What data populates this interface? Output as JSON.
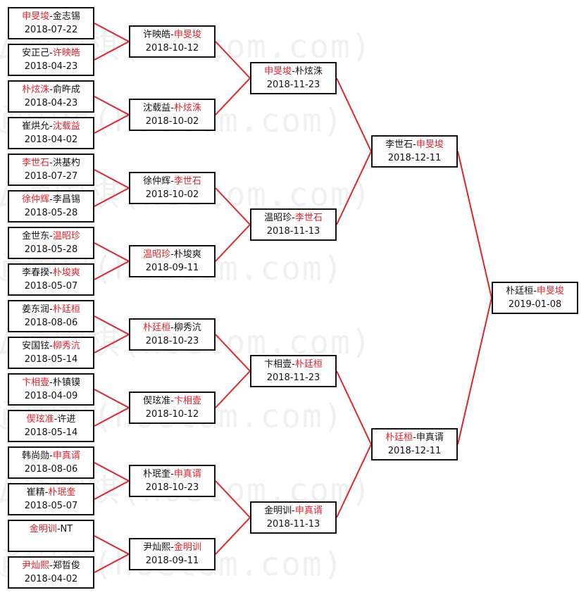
{
  "watermark": "弘通围棋(hoetom.com)",
  "colors": {
    "winner": "#e8202a",
    "line": "#e8202a",
    "border": "#111111"
  },
  "rounds": [
    [
      {
        "p1": "申旻埈",
        "p2": "金志锡",
        "winner": 1,
        "date": "2018-07-22"
      },
      {
        "p1": "安正己",
        "p2": "许映皓",
        "winner": 2,
        "date": "2018-04-23"
      },
      {
        "p1": "朴炫洙",
        "p2": "俞旿成",
        "winner": 1,
        "date": "2018-04-23"
      },
      {
        "p1": "崔烘允",
        "p2": "沈载益",
        "winner": 2,
        "date": "2018-04-02"
      },
      {
        "p1": "李世石",
        "p2": "洪基杓",
        "winner": 1,
        "date": "2018-07-27"
      },
      {
        "p1": "徐仲辉",
        "p2": "李昌锡",
        "winner": 1,
        "date": "2018-05-28"
      },
      {
        "p1": "金世东",
        "p2": "温昭珍",
        "winner": 2,
        "date": "2018-05-28"
      },
      {
        "p1": "李春揆",
        "p2": "朴埈爽",
        "winner": 2,
        "date": "2018-05-07"
      },
      {
        "p1": "姜东润",
        "p2": "朴廷桓",
        "winner": 2,
        "date": "2018-08-06"
      },
      {
        "p1": "安国铉",
        "p2": "柳秀沆",
        "winner": 2,
        "date": "2018-05-14"
      },
      {
        "p1": "卞相壹",
        "p2": "朴镇镆",
        "winner": 1,
        "date": "2018-04-09"
      },
      {
        "p1": "偰玹准",
        "p2": "许进",
        "winner": 1,
        "date": "2018-05-14"
      },
      {
        "p1": "韩尚勋",
        "p2": "申真谞",
        "winner": 2,
        "date": "2018-08-06"
      },
      {
        "p1": "崔精",
        "p2": "朴珉奎",
        "winner": 2,
        "date": "2018-05-07"
      },
      {
        "p1": "金明训",
        "p2": "NT",
        "winner": 1,
        "date": ""
      },
      {
        "p1": "尹灿熙",
        "p2": "郑晢俊",
        "winner": 1,
        "date": "2018-04-02"
      }
    ],
    [
      {
        "p1": "许映皓",
        "p2": "申旻埈",
        "winner": 2,
        "date": "2018-10-12"
      },
      {
        "p1": "沈载益",
        "p2": "朴炫洙",
        "winner": 2,
        "date": "2018-10-02"
      },
      {
        "p1": "徐仲辉",
        "p2": "李世石",
        "winner": 2,
        "date": "2018-10-02"
      },
      {
        "p1": "温昭珍",
        "p2": "朴埈爽",
        "winner": 1,
        "date": "2018-09-11"
      },
      {
        "p1": "朴廷桓",
        "p2": "柳秀沆",
        "winner": 1,
        "date": "2018-10-23"
      },
      {
        "p1": "偰玹准",
        "p2": "卞相壹",
        "winner": 2,
        "date": "2018-10-12"
      },
      {
        "p1": "朴珉奎",
        "p2": "申真谞",
        "winner": 2,
        "date": "2018-10-23"
      },
      {
        "p1": "尹灿熙",
        "p2": "金明训",
        "winner": 2,
        "date": "2018-09-11"
      }
    ],
    [
      {
        "p1": "申旻埈",
        "p2": "朴炫洙",
        "winner": 1,
        "date": "2018-11-23"
      },
      {
        "p1": "温昭珍",
        "p2": "李世石",
        "winner": 2,
        "date": "2018-11-13"
      },
      {
        "p1": "卞相壹",
        "p2": "朴廷桓",
        "winner": 2,
        "date": "2018-11-23"
      },
      {
        "p1": "金明训",
        "p2": "申真谞",
        "winner": 2,
        "date": "2018-11-13"
      }
    ],
    [
      {
        "p1": "李世石",
        "p2": "申旻埈",
        "winner": 2,
        "date": "2018-12-11"
      },
      {
        "p1": "朴廷桓",
        "p2": "申真谞",
        "winner": 1,
        "date": "2018-12-11"
      }
    ],
    [
      {
        "p1": "朴廷桓",
        "p2": "申旻埈",
        "winner": 2,
        "date": "2019-01-08"
      }
    ]
  ]
}
